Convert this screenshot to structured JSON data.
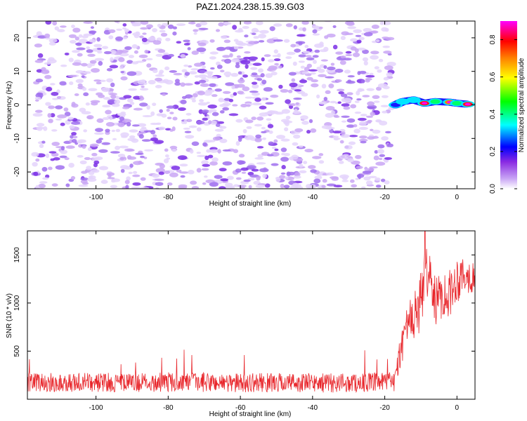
{
  "figure": {
    "title": "PAZ1.2024.238.15.39.G03"
  },
  "colors": {
    "snr_line": "#e8262b",
    "frame": "#000000",
    "colormap": [
      "#ffffff",
      "#c9a6f5",
      "#8a2be2",
      "#0000ff",
      "#00ffff",
      "#00ff00",
      "#ffff00",
      "#ff8000",
      "#ff0000",
      "#ff00ff"
    ]
  },
  "chart_data": [
    {
      "type": "heatmap",
      "xlabel": "Height of straight line (km)",
      "ylabel": "Frequency (Hz)",
      "xlim": [
        -119,
        5
      ],
      "ylim": [
        -25,
        25
      ],
      "x_ticks": [
        -100,
        -80,
        -60,
        -40,
        -20,
        0
      ],
      "y_ticks": [
        -20,
        -10,
        0,
        10,
        20
      ],
      "colorbar": {
        "label": "Normalized spectral amplitude",
        "range": [
          0.0,
          0.9
        ],
        "ticks": [
          "0.0",
          "0.2",
          "0.4",
          "0.6",
          "0.8"
        ]
      },
      "description_values": {
        "noise_region_x": [
          -117,
          -18
        ],
        "noise_freq_range": [
          -25,
          25
        ],
        "noise_amplitude": [
          0.05,
          0.35
        ],
        "signal_ridge": [
          {
            "x": -17,
            "freq": 0.0,
            "amp": 0.3
          },
          {
            "x": -15,
            "freq": 1.0,
            "amp": 0.45
          },
          {
            "x": -12,
            "freq": 1.5,
            "amp": 0.4
          },
          {
            "x": -9,
            "freq": 0.5,
            "amp": 0.85
          },
          {
            "x": -6,
            "freq": 1.0,
            "amp": 0.5
          },
          {
            "x": -2,
            "freq": 0.8,
            "amp": 0.8
          },
          {
            "x": 0,
            "freq": 0.5,
            "amp": 0.55
          },
          {
            "x": 3,
            "freq": 0.2,
            "amp": 0.85
          }
        ]
      }
    },
    {
      "type": "line",
      "xlabel": "Height of straight line (km)",
      "ylabel": "SNR (10 * v/v)",
      "xlim": [
        -119,
        5
      ],
      "ylim": [
        0,
        1750
      ],
      "x_ticks": [
        -100,
        -80,
        -60,
        -40,
        -20,
        0
      ],
      "y_ticks": [
        500,
        1000,
        1500
      ],
      "series": [
        {
          "x": [
            -119,
            -110,
            -100,
            -90,
            -80,
            -70,
            -60,
            -50,
            -40,
            -30,
            -20,
            -17,
            -15,
            -13,
            -11,
            -9,
            -8,
            -6,
            -4,
            -2,
            0,
            2,
            5
          ],
          "y_center": [
            180,
            170,
            175,
            170,
            180,
            175,
            170,
            175,
            170,
            170,
            175,
            200,
            650,
            800,
            900,
            1200,
            1400,
            1000,
            1100,
            1100,
            1250,
            1300,
            1250
          ],
          "y_spread": [
            100,
            100,
            100,
            100,
            100,
            100,
            100,
            100,
            100,
            100,
            100,
            120,
            250,
            250,
            300,
            300,
            300,
            250,
            250,
            250,
            250,
            200,
            150
          ]
        }
      ]
    }
  ]
}
